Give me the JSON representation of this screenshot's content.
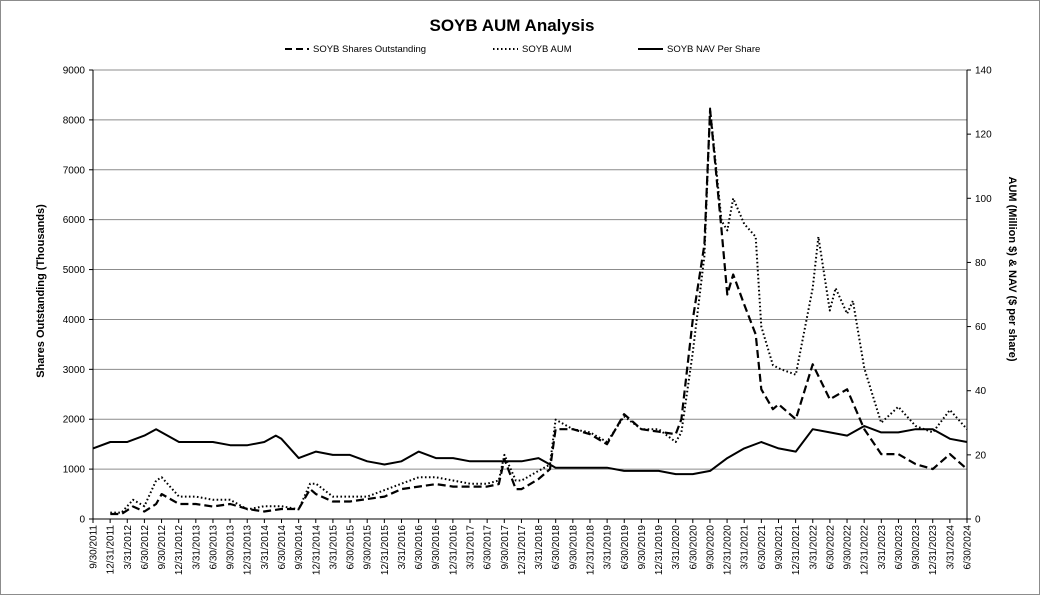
{
  "chart_data": {
    "type": "line",
    "title": "SOYB AUM Analysis",
    "ylabel": "Shares Outstanding (Thousands)",
    "y2label": "AUM (Million $) & NAV ($ per share)",
    "ylim": [
      0,
      9000
    ],
    "y2lim": [
      0,
      140
    ],
    "yticks": [
      "0",
      "1000",
      "2000",
      "3000",
      "4000",
      "5000",
      "6000",
      "7000",
      "8000",
      "9000"
    ],
    "y2ticks": [
      "0",
      "20",
      "40",
      "60",
      "80",
      "100",
      "120",
      "140"
    ],
    "legend_position": "top-center",
    "grid": "horizontal",
    "xticks": [
      "9/30/2011",
      "12/31/2011",
      "3/31/2012",
      "6/30/2012",
      "9/30/2012",
      "12/31/2012",
      "3/31/2013",
      "6/30/2013",
      "9/30/2013",
      "12/31/2013",
      "3/31/2014",
      "6/30/2014",
      "9/30/2014",
      "12/31/2014",
      "3/31/2015",
      "6/30/2015",
      "9/30/2015",
      "12/31/2015",
      "3/31/2016",
      "6/30/2016",
      "9/30/2016",
      "12/31/2016",
      "3/31/2017",
      "6/30/2017",
      "9/30/2017",
      "12/31/2017",
      "3/31/2018",
      "6/30/2018",
      "9/30/2018",
      "12/31/2018",
      "3/31/2019",
      "6/30/2019",
      "9/30/2019",
      "12/31/2019",
      "3/31/2020",
      "6/30/2020",
      "9/30/2020",
      "12/31/2020",
      "3/31/2021",
      "6/30/2021",
      "9/30/2021",
      "12/31/2021",
      "3/31/2022",
      "6/30/2022",
      "9/30/2022",
      "12/31/2022",
      "3/31/2023",
      "6/30/2023",
      "9/30/2023",
      "12/31/2023",
      "3/31/2024",
      "6/30/2024"
    ],
    "x_start": "2011-09-30",
    "x_end": "2024-06-30",
    "series": [
      {
        "name": "SOYB Shares Outstanding",
        "axis": "left",
        "style": "dashed",
        "points": [
          [
            "2011-12-31",
            100
          ],
          [
            "2012-02-29",
            100
          ],
          [
            "2012-04-30",
            250
          ],
          [
            "2012-06-30",
            150
          ],
          [
            "2012-08-31",
            300
          ],
          [
            "2012-09-30",
            500
          ],
          [
            "2012-12-31",
            300
          ],
          [
            "2013-03-31",
            300
          ],
          [
            "2013-06-30",
            250
          ],
          [
            "2013-09-30",
            300
          ],
          [
            "2013-12-31",
            200
          ],
          [
            "2014-03-31",
            150
          ],
          [
            "2014-06-30",
            200
          ],
          [
            "2014-09-30",
            200
          ],
          [
            "2014-11-30",
            600
          ],
          [
            "2014-12-31",
            500
          ],
          [
            "2015-03-31",
            350
          ],
          [
            "2015-06-30",
            350
          ],
          [
            "2015-09-30",
            400
          ],
          [
            "2015-12-31",
            450
          ],
          [
            "2016-03-31",
            600
          ],
          [
            "2016-06-30",
            650
          ],
          [
            "2016-09-30",
            700
          ],
          [
            "2016-12-31",
            650
          ],
          [
            "2017-03-31",
            650
          ],
          [
            "2017-06-30",
            650
          ],
          [
            "2017-08-31",
            700
          ],
          [
            "2017-09-30",
            1200
          ],
          [
            "2017-11-30",
            600
          ],
          [
            "2017-12-31",
            600
          ],
          [
            "2018-03-31",
            800
          ],
          [
            "2018-05-31",
            1000
          ],
          [
            "2018-06-30",
            1800
          ],
          [
            "2018-09-30",
            1800
          ],
          [
            "2018-12-31",
            1700
          ],
          [
            "2019-03-31",
            1500
          ],
          [
            "2019-06-30",
            2100
          ],
          [
            "2019-09-30",
            1800
          ],
          [
            "2019-12-31",
            1750
          ],
          [
            "2020-03-31",
            1700
          ],
          [
            "2020-04-30",
            2000
          ],
          [
            "2020-06-30",
            4000
          ],
          [
            "2020-08-31",
            5500
          ],
          [
            "2020-09-30",
            8200
          ],
          [
            "2020-11-30",
            5800
          ],
          [
            "2020-12-31",
            4500
          ],
          [
            "2021-01-31",
            4900
          ],
          [
            "2021-03-31",
            4300
          ],
          [
            "2021-05-31",
            3700
          ],
          [
            "2021-06-30",
            2600
          ],
          [
            "2021-08-31",
            2200
          ],
          [
            "2021-09-30",
            2300
          ],
          [
            "2021-12-31",
            2000
          ],
          [
            "2022-03-31",
            3100
          ],
          [
            "2022-06-30",
            2400
          ],
          [
            "2022-09-30",
            2600
          ],
          [
            "2022-12-31",
            1800
          ],
          [
            "2023-03-31",
            1300
          ],
          [
            "2023-06-30",
            1300
          ],
          [
            "2023-09-30",
            1100
          ],
          [
            "2023-12-31",
            1000
          ],
          [
            "2024-03-31",
            1300
          ],
          [
            "2024-06-30",
            1000
          ]
        ]
      },
      {
        "name": "SOYB AUM",
        "axis": "right",
        "style": "dotted",
        "points": [
          [
            "2011-12-31",
            2
          ],
          [
            "2012-02-29",
            2
          ],
          [
            "2012-04-30",
            6
          ],
          [
            "2012-06-30",
            4
          ],
          [
            "2012-08-31",
            12
          ],
          [
            "2012-09-30",
            13
          ],
          [
            "2012-12-31",
            7
          ],
          [
            "2013-03-31",
            7
          ],
          [
            "2013-06-30",
            6
          ],
          [
            "2013-09-30",
            6
          ],
          [
            "2013-12-31",
            3
          ],
          [
            "2014-03-31",
            4
          ],
          [
            "2014-06-30",
            4
          ],
          [
            "2014-09-30",
            3
          ],
          [
            "2014-11-30",
            11
          ],
          [
            "2014-12-31",
            11
          ],
          [
            "2015-03-31",
            7
          ],
          [
            "2015-06-30",
            7
          ],
          [
            "2015-09-30",
            7
          ],
          [
            "2015-12-31",
            9
          ],
          [
            "2016-03-31",
            11
          ],
          [
            "2016-06-30",
            13
          ],
          [
            "2016-09-30",
            13
          ],
          [
            "2016-12-31",
            12
          ],
          [
            "2017-03-31",
            11
          ],
          [
            "2017-06-30",
            11
          ],
          [
            "2017-08-31",
            12
          ],
          [
            "2017-09-30",
            20
          ],
          [
            "2017-11-30",
            12
          ],
          [
            "2017-12-31",
            12
          ],
          [
            "2018-03-31",
            15
          ],
          [
            "2018-05-31",
            17
          ],
          [
            "2018-06-30",
            31
          ],
          [
            "2018-09-30",
            28
          ],
          [
            "2018-12-31",
            27
          ],
          [
            "2019-03-31",
            24
          ],
          [
            "2019-06-30",
            32
          ],
          [
            "2019-09-30",
            28
          ],
          [
            "2019-12-31",
            28
          ],
          [
            "2020-03-31",
            24
          ],
          [
            "2020-04-30",
            27
          ],
          [
            "2020-06-30",
            52
          ],
          [
            "2020-08-31",
            82
          ],
          [
            "2020-09-30",
            128
          ],
          [
            "2020-11-30",
            93
          ],
          [
            "2020-12-31",
            90
          ],
          [
            "2021-01-31",
            100
          ],
          [
            "2021-03-31",
            92
          ],
          [
            "2021-05-31",
            88
          ],
          [
            "2021-06-30",
            60
          ],
          [
            "2021-08-31",
            48
          ],
          [
            "2021-09-30",
            47
          ],
          [
            "2021-12-31",
            45
          ],
          [
            "2022-03-31",
            72
          ],
          [
            "2022-04-30",
            88
          ],
          [
            "2022-06-30",
            65
          ],
          [
            "2022-07-31",
            72
          ],
          [
            "2022-09-30",
            64
          ],
          [
            "2022-10-31",
            68
          ],
          [
            "2022-12-31",
            47
          ],
          [
            "2023-03-31",
            30
          ],
          [
            "2023-06-30",
            35
          ],
          [
            "2023-09-30",
            29
          ],
          [
            "2023-12-31",
            27
          ],
          [
            "2024-03-31",
            34
          ],
          [
            "2024-06-30",
            28
          ]
        ]
      },
      {
        "name": "SOYB NAV Per Share",
        "axis": "right",
        "style": "solid",
        "points": [
          [
            "2011-09-30",
            22
          ],
          [
            "2011-12-31",
            24
          ],
          [
            "2012-03-31",
            24
          ],
          [
            "2012-06-30",
            26
          ],
          [
            "2012-08-31",
            28
          ],
          [
            "2012-09-30",
            27
          ],
          [
            "2012-12-31",
            24
          ],
          [
            "2013-03-31",
            24
          ],
          [
            "2013-06-30",
            24
          ],
          [
            "2013-09-30",
            23
          ],
          [
            "2013-12-31",
            23
          ],
          [
            "2014-03-31",
            24
          ],
          [
            "2014-05-31",
            26
          ],
          [
            "2014-06-30",
            25
          ],
          [
            "2014-09-30",
            19
          ],
          [
            "2014-12-31",
            21
          ],
          [
            "2015-03-31",
            20
          ],
          [
            "2015-06-30",
            20
          ],
          [
            "2015-09-30",
            18
          ],
          [
            "2015-12-31",
            17
          ],
          [
            "2016-03-31",
            18
          ],
          [
            "2016-06-30",
            21
          ],
          [
            "2016-09-30",
            19
          ],
          [
            "2016-12-31",
            19
          ],
          [
            "2017-03-31",
            18
          ],
          [
            "2017-06-30",
            18
          ],
          [
            "2017-09-30",
            18
          ],
          [
            "2017-12-31",
            18
          ],
          [
            "2018-03-31",
            19
          ],
          [
            "2018-05-31",
            17
          ],
          [
            "2018-06-30",
            16
          ],
          [
            "2018-09-30",
            16
          ],
          [
            "2018-12-31",
            16
          ],
          [
            "2019-03-31",
            16
          ],
          [
            "2019-06-30",
            15
          ],
          [
            "2019-09-30",
            15
          ],
          [
            "2019-12-31",
            15
          ],
          [
            "2020-03-31",
            14
          ],
          [
            "2020-06-30",
            14
          ],
          [
            "2020-09-30",
            15
          ],
          [
            "2020-12-31",
            19
          ],
          [
            "2021-03-31",
            22
          ],
          [
            "2021-06-30",
            24
          ],
          [
            "2021-09-30",
            22
          ],
          [
            "2021-12-31",
            21
          ],
          [
            "2022-03-31",
            28
          ],
          [
            "2022-06-30",
            27
          ],
          [
            "2022-09-30",
            26
          ],
          [
            "2022-12-31",
            29
          ],
          [
            "2023-03-31",
            27
          ],
          [
            "2023-06-30",
            27
          ],
          [
            "2023-09-30",
            28
          ],
          [
            "2023-12-31",
            28
          ],
          [
            "2024-03-31",
            25
          ],
          [
            "2024-06-30",
            24
          ]
        ]
      }
    ]
  }
}
